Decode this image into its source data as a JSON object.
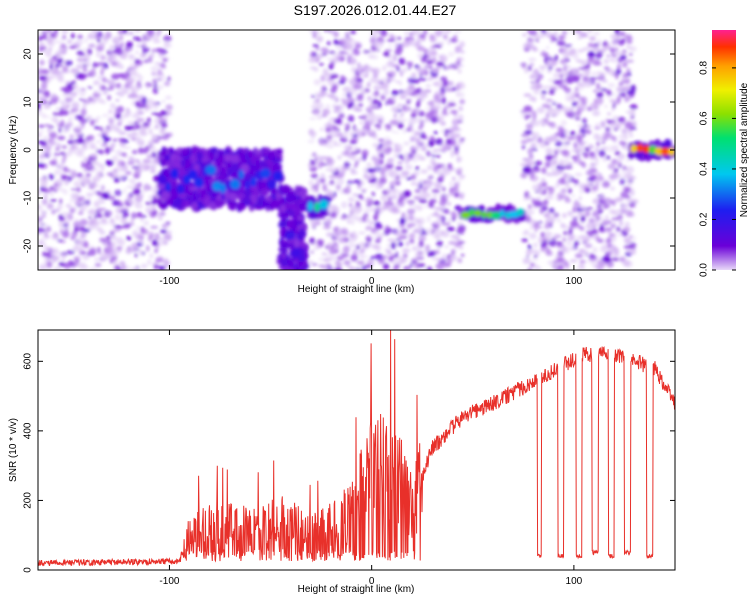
{
  "title": "S197.2026.012.01.44.E27",
  "chart_data": [
    {
      "type": "heatmap",
      "name": "spectrogram",
      "xlabel": "Height of straight line (km)",
      "ylabel": "Frequency (Hz)",
      "xlim": [
        -165,
        150
      ],
      "ylim": [
        -25,
        25
      ],
      "xticks": [
        -100,
        0,
        100
      ],
      "yticks": [
        -20,
        -10,
        0,
        10,
        20
      ],
      "colorbar": {
        "label": "Normalized spectral amplitude",
        "range": [
          0,
          0.95
        ],
        "ticks": [
          0,
          0.2,
          0.4,
          0.6,
          0.8
        ],
        "colors": [
          "#e8d8f8",
          "#6a00d8",
          "#1e1ef0",
          "#00c8f0",
          "#00e070",
          "#8ce000",
          "#f0f000",
          "#ffa000",
          "#ff3000",
          "#ff2090"
        ]
      },
      "noise_regions": [
        {
          "x": [
            -165,
            -100
          ],
          "y": [
            -25,
            25
          ]
        },
        {
          "x": [
            -30,
            45
          ],
          "y": [
            -25,
            25
          ]
        },
        {
          "x": [
            75,
            130
          ],
          "y": [
            -25,
            25
          ]
        }
      ],
      "signal_features": [
        {
          "x": [
            -105,
            -45
          ],
          "y": [
            -12,
            0
          ],
          "amplitude": 0.3
        },
        {
          "x": [
            -45,
            -33
          ],
          "y": [
            -28,
            -8
          ],
          "amplitude": 0.2
        },
        {
          "x": [
            -32,
            -22
          ],
          "y": [
            -14,
            -10
          ],
          "amplitude": 0.5
        },
        {
          "x": [
            45,
            75
          ],
          "y": [
            -14.5,
            -12
          ],
          "amplitude": 0.6
        },
        {
          "x": [
            128,
            150
          ],
          "y": [
            -1.5,
            1.5
          ],
          "amplitude": 0.9
        }
      ]
    },
    {
      "type": "line",
      "name": "snr",
      "xlabel": "Height of straight line (km)",
      "ylabel": "SNR (10 * v/v)",
      "xlim": [
        -165,
        150
      ],
      "ylim": [
        0,
        690
      ],
      "xticks": [
        -100,
        0,
        100
      ],
      "yticks": [
        0,
        200,
        400,
        600
      ],
      "color": "#e8302a",
      "segments": [
        {
          "x": -165,
          "y": 20
        },
        {
          "x": -95,
          "y": 25
        },
        {
          "x": -90,
          "y": 110
        },
        {
          "x": -80,
          "y": 140
        },
        {
          "x": -60,
          "y": 120
        },
        {
          "x": -45,
          "y": 150
        },
        {
          "x": -30,
          "y": 110
        },
        {
          "x": -20,
          "y": 130
        },
        {
          "x": -10,
          "y": 170
        },
        {
          "x": 0,
          "y": 300
        },
        {
          "x": 10,
          "y": 320
        },
        {
          "x": 20,
          "y": 190
        },
        {
          "x": 30,
          "y": 350
        },
        {
          "x": 45,
          "y": 440
        },
        {
          "x": 60,
          "y": 480
        },
        {
          "x": 80,
          "y": 540
        },
        {
          "x": 95,
          "y": 590
        },
        {
          "x": 105,
          "y": 620
        },
        {
          "x": 120,
          "y": 620
        },
        {
          "x": 140,
          "y": 580
        },
        {
          "x": 150,
          "y": 480
        }
      ],
      "dropouts": [
        {
          "x": [
            82,
            84
          ],
          "y": 40
        },
        {
          "x": [
            92,
            95
          ],
          "y": 40
        },
        {
          "x": [
            101,
            104
          ],
          "y": 40
        },
        {
          "x": [
            109,
            112
          ],
          "y": 50
        },
        {
          "x": [
            117,
            120
          ],
          "y": 40
        },
        {
          "x": [
            125,
            128
          ],
          "y": 50
        },
        {
          "x": [
            136,
            139
          ],
          "y": 40
        }
      ]
    }
  ]
}
